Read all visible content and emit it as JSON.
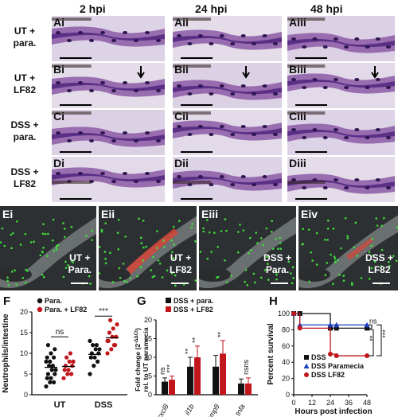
{
  "histology": {
    "columns": [
      "2 hpi",
      "24 hpi",
      "48 hpi"
    ],
    "rows": [
      {
        "label_line1": "UT +",
        "label_line2": "para.",
        "panels": [
          "Ai",
          "Aii",
          "Aiii"
        ]
      },
      {
        "label_line1": "UT +",
        "label_line2": "LF82",
        "panels": [
          "Bi",
          "Bii",
          "Biii"
        ]
      },
      {
        "label_line1": "DSS +",
        "label_line2": "para.",
        "panels": [
          "Ci",
          "Cii",
          "Ciii"
        ]
      },
      {
        "label_line1": "DSS +",
        "label_line2": "LF82",
        "panels": [
          "Di",
          "Dii",
          "Diii"
        ]
      }
    ]
  },
  "fluorescence": {
    "panels": [
      {
        "id": "Ei",
        "line1": "UT +",
        "line2": "Para."
      },
      {
        "id": "Eii",
        "line1": "UT +",
        "line2": "LF82"
      },
      {
        "id": "Eiii",
        "line1": "DSS +",
        "line2": "Para."
      },
      {
        "id": "Eiv",
        "line1": "DSS +",
        "line2": "LF82"
      }
    ]
  },
  "panel_F": {
    "letter": "F",
    "ylabel": "Neutrophils/intestine",
    "legend": [
      "Para.",
      "Para. + LF82"
    ],
    "groups": [
      "UT",
      "DSS"
    ],
    "sig": [
      "ns",
      "***"
    ],
    "yticks": [
      "0",
      "5",
      "10",
      "15",
      "20"
    ],
    "colors": {
      "para": "#111111",
      "lf82": "#c0161c"
    }
  },
  "panel_G": {
    "letter": "G",
    "ylabel_line1": "Fold change (2",
    "ylabel_sup": "-ΔΔCt",
    "ylabel_line1_end": ")",
    "ylabel_line2": "rel. to UT paramecia",
    "legend": [
      "DSS + para.",
      "DSS + LF82"
    ],
    "genes": [
      "cxcl8",
      "il1b",
      "mmp9",
      "tnfa"
    ],
    "sig_top": [
      "***",
      "**",
      "**",
      "nsns"
    ],
    "sig_left": [
      "ns",
      "**",
      "",
      ""
    ],
    "yticks": [
      "0",
      "5",
      "10",
      "15",
      "20"
    ]
  },
  "panel_H": {
    "letter": "H",
    "ylabel": "Percent survival",
    "xlabel": "Hours post infection",
    "yticks": [
      "0",
      "20",
      "40",
      "60",
      "80",
      "100"
    ],
    "xticks": [
      "0",
      "12",
      "24",
      "36",
      "48"
    ],
    "legend": [
      "DSS",
      "DSS Paramecia",
      "DSS LF82"
    ],
    "sig": [
      "ns",
      "**",
      "***"
    ],
    "colors": {
      "dss": "#111111",
      "para": "#1f3fbf",
      "lf82": "#c0161c"
    }
  },
  "chart_data": [
    {
      "type": "scatter",
      "panel": "F",
      "ylabel": "Neutrophils/intestine",
      "ylim": [
        0,
        20
      ],
      "categories": [
        "UT",
        "DSS"
      ],
      "series": [
        {
          "name": "Para.",
          "values_by_group": {
            "UT": [
              2,
              3,
              3,
              4,
              4,
              5,
              5,
              6,
              6,
              7,
              7,
              8,
              8,
              9,
              9,
              10,
              11,
              12
            ],
            "DSS": [
              5,
              7,
              8,
              9,
              9,
              10,
              10,
              11,
              11,
              12,
              12,
              13
            ]
          }
        },
        {
          "name": "Para. + LF82",
          "values_by_group": {
            "UT": [
              4,
              5,
              5,
              6,
              6,
              7,
              7,
              8,
              8,
              9,
              10
            ],
            "DSS": [
              10,
              11,
              12,
              13,
              14,
              14,
              15,
              16,
              17,
              18,
              12,
              13
            ]
          }
        }
      ],
      "annotations": [
        "ns",
        "***"
      ]
    },
    {
      "type": "bar",
      "panel": "G",
      "ylabel": "Fold change (2^-ΔΔCt) rel. to UT paramecia",
      "ylim": [
        0,
        20
      ],
      "categories": [
        "cxcl8",
        "il1b",
        "mmp9",
        "tnfa"
      ],
      "series": [
        {
          "name": "DSS + para.",
          "values": [
            3.5,
            7.5,
            7.5,
            3.0
          ],
          "errors": [
            1.0,
            2.5,
            3.0,
            1.2
          ]
        },
        {
          "name": "DSS + LF82",
          "values": [
            4.0,
            10.0,
            11.0,
            3.0
          ],
          "errors": [
            1.0,
            3.0,
            3.5,
            1.5
          ]
        }
      ],
      "annotations": [
        "ns",
        "***",
        "**",
        "**",
        "**",
        "ns",
        "ns"
      ]
    },
    {
      "type": "line",
      "panel": "H",
      "xlabel": "Hours post infection",
      "ylabel": "Percent survival",
      "xlim": [
        0,
        48
      ],
      "ylim": [
        0,
        100
      ],
      "series": [
        {
          "name": "DSS",
          "x": [
            0,
            4,
            24,
            28,
            48
          ],
          "values": [
            100,
            100,
            82,
            82,
            82
          ]
        },
        {
          "name": "DSS Paramecia",
          "x": [
            0,
            4,
            24,
            28,
            48
          ],
          "values": [
            100,
            86,
            86,
            86,
            86
          ]
        },
        {
          "name": "DSS LF82",
          "x": [
            0,
            4,
            24,
            28,
            48
          ],
          "values": [
            100,
            82,
            50,
            48,
            48
          ]
        }
      ],
      "annotations": [
        "ns",
        "**",
        "***"
      ]
    }
  ]
}
